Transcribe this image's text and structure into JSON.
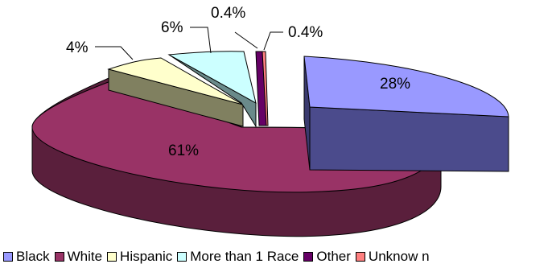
{
  "chart_data": {
    "type": "pie",
    "title": "",
    "categories": [
      "Black",
      "White",
      "Hispanic",
      "More than 1 Race",
      "Other",
      "Unknown"
    ],
    "values": [
      28,
      61,
      4,
      6,
      0.4,
      0.4
    ],
    "data_labels": [
      "28%",
      "61%",
      "4%",
      "6%",
      "0.4%",
      "0.4%"
    ],
    "colors": [
      "#9999FF",
      "#993366",
      "#FFFFCC",
      "#CCFFFF",
      "#660066",
      "#FF8080"
    ],
    "legend_placement": "bottom",
    "style": "3d-exploded"
  },
  "legend": {
    "items": [
      {
        "label": "Black",
        "color": "#9999FF"
      },
      {
        "label": "White",
        "color": "#993366"
      },
      {
        "label": "Hispanic",
        "color": "#FFFFCC"
      },
      {
        "label": "More than 1 Race",
        "color": "#CCFFFF"
      },
      {
        "label": "Other",
        "color": "#660066"
      },
      {
        "label": "Unknow n",
        "color": "#FF8080"
      }
    ]
  }
}
